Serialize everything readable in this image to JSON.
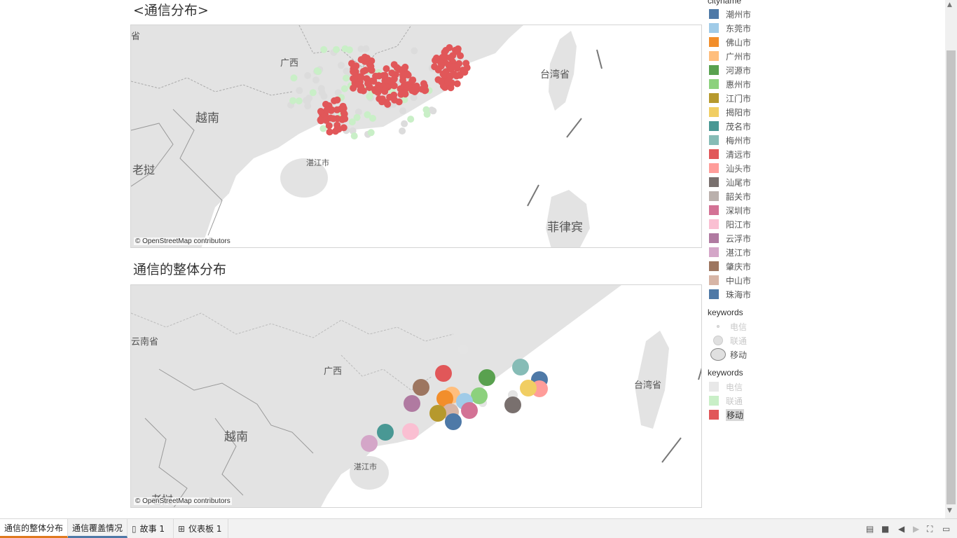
{
  "sheets": {
    "top_title": "<通信分布>",
    "bottom_title": "通信的整体分布"
  },
  "map1": {
    "attribution": "© OpenStreetMap contributors",
    "labels": [
      "广西",
      "越南",
      "老挝",
      "湛江市",
      "台湾省",
      "菲律宾",
      "海南省"
    ]
  },
  "map2": {
    "attribution": "© OpenStreetMap contributors",
    "labels": [
      "云南省",
      "广西",
      "越南",
      "湛江市",
      "台湾省",
      "老挝"
    ]
  },
  "legend_cityname": {
    "title": "cityname",
    "items": [
      {
        "label": "潮州市",
        "color": "#4e79a7"
      },
      {
        "label": "东莞市",
        "color": "#a0cbe8"
      },
      {
        "label": "佛山市",
        "color": "#f28e2b"
      },
      {
        "label": "广州市",
        "color": "#ffbe7d"
      },
      {
        "label": "河源市",
        "color": "#59a14f"
      },
      {
        "label": "惠州市",
        "color": "#8cd17d"
      },
      {
        "label": "江门市",
        "color": "#b6992d"
      },
      {
        "label": "揭阳市",
        "color": "#f1ce63"
      },
      {
        "label": "茂名市",
        "color": "#499894"
      },
      {
        "label": "梅州市",
        "color": "#86bcb6"
      },
      {
        "label": "清远市",
        "color": "#e15759"
      },
      {
        "label": "汕头市",
        "color": "#ff9d9a"
      },
      {
        "label": "汕尾市",
        "color": "#79706e"
      },
      {
        "label": "韶关市",
        "color": "#bab0ac"
      },
      {
        "label": "深圳市",
        "color": "#d37295"
      },
      {
        "label": "阳江市",
        "color": "#fabfd2"
      },
      {
        "label": "云浮市",
        "color": "#b07aa1"
      },
      {
        "label": "湛江市",
        "color": "#d4a6c8"
      },
      {
        "label": "肇庆市",
        "color": "#9d7660"
      },
      {
        "label": "中山市",
        "color": "#d7b5a6"
      },
      {
        "label": "珠海市",
        "color": "#4e79a7"
      }
    ]
  },
  "legend_size": {
    "title": "keywords",
    "items": [
      {
        "label": "电信"
      },
      {
        "label": "联通"
      },
      {
        "label": "移动"
      }
    ]
  },
  "legend_color": {
    "title": "keywords",
    "items": [
      {
        "label": "电信",
        "color": "#e8e8e8"
      },
      {
        "label": "联通",
        "color": "#c9efc7"
      },
      {
        "label": "移动",
        "color": "#e15759"
      }
    ]
  },
  "tabs": [
    {
      "label": "通信的整体分布"
    },
    {
      "label": "通信覆盖情况"
    },
    {
      "label": "故事 1",
      "icon": "book-icon"
    },
    {
      "label": "仪表板 1",
      "icon": "dashboard-icon"
    }
  ],
  "colors": {
    "accent_orange": "#e07a1f",
    "accent_blue": "#4e79a7",
    "map_land": "#e3e3e3",
    "map_water": "#ffffff",
    "mobile_red": "#e15759",
    "unicom_green": "#c9efc7"
  }
}
